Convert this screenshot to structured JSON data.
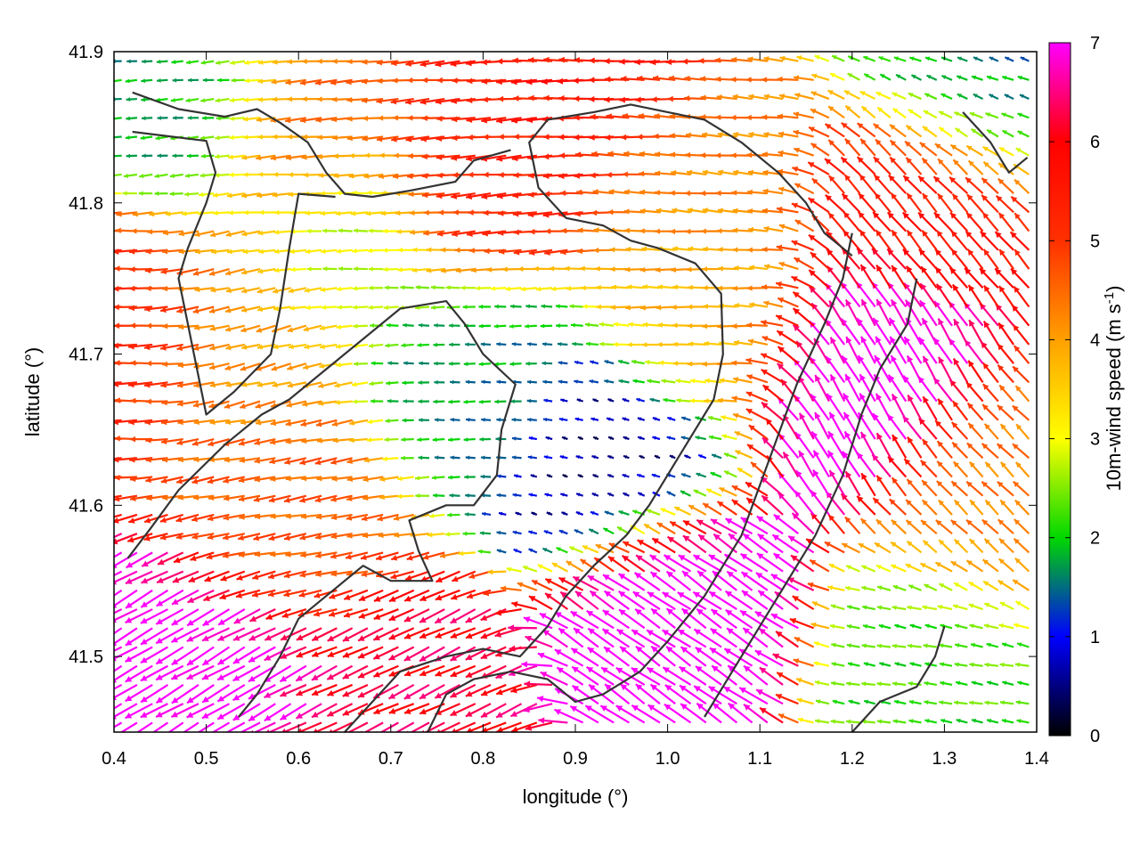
{
  "chart_data": {
    "type": "vector-field",
    "xlabel": "longitude (°)",
    "ylabel": "latitude (°)",
    "xlim": [
      0.4,
      1.4
    ],
    "ylim": [
      41.45,
      41.9
    ],
    "xticks": [
      {
        "v": 0.4,
        "label": "0.4"
      },
      {
        "v": 0.5,
        "label": "0.5"
      },
      {
        "v": 0.6,
        "label": "0.6"
      },
      {
        "v": 0.7,
        "label": "0.7"
      },
      {
        "v": 0.8,
        "label": "0.8"
      },
      {
        "v": 0.9,
        "label": "0.9"
      },
      {
        "v": 1.0,
        "label": "1.0"
      },
      {
        "v": 1.1,
        "label": "1.1"
      },
      {
        "v": 1.2,
        "label": "1.2"
      },
      {
        "v": 1.3,
        "label": "1.3"
      },
      {
        "v": 1.4,
        "label": "1.4"
      }
    ],
    "yticks": [
      {
        "v": 41.5,
        "label": "41.5"
      },
      {
        "v": 41.6,
        "label": "41.6"
      },
      {
        "v": 41.7,
        "label": "41.7"
      },
      {
        "v": 41.8,
        "label": "41.8"
      },
      {
        "v": 41.9,
        "label": "41.9"
      }
    ],
    "grid": false,
    "colorbar": {
      "label": "10m-wind speed (m s",
      "label_superscript": "-1",
      "label_suffix": ")",
      "range": [
        0,
        7
      ],
      "ticks": [
        {
          "v": 0,
          "label": "0"
        },
        {
          "v": 1,
          "label": "1"
        },
        {
          "v": 2,
          "label": "2"
        },
        {
          "v": 3,
          "label": "3"
        },
        {
          "v": 4,
          "label": "4"
        },
        {
          "v": 5,
          "label": "5"
        },
        {
          "v": 6,
          "label": "6"
        },
        {
          "v": 7,
          "label": "7"
        }
      ],
      "colors": [
        "#000000",
        "#0000ff",
        "#00d800",
        "#ffff00",
        "#ffa000",
        "#ff3000",
        "#ff0000",
        "#ff00ff"
      ]
    },
    "field_regions": [
      {
        "name": "north-west-gap",
        "lon": 0.49,
        "lat": 41.87,
        "speed": 1.8,
        "dir_deg": 185
      },
      {
        "name": "north-band",
        "lon": 0.62,
        "lat": 41.85,
        "speed": 4.6,
        "dir_deg": 185
      },
      {
        "name": "west-coast",
        "lon": 0.42,
        "lat": 41.72,
        "speed": 5.2,
        "dir_deg": 180
      },
      {
        "name": "western-valley",
        "lon": 0.55,
        "lat": 41.72,
        "speed": 4.0,
        "dir_deg": 195
      },
      {
        "name": "central-plateau",
        "lon": 0.66,
        "lat": 41.78,
        "speed": 2.6,
        "dir_deg": 180
      },
      {
        "name": "central-north",
        "lon": 0.8,
        "lat": 41.82,
        "speed": 5.3,
        "dir_deg": 185
      },
      {
        "name": "north-east-ridge",
        "lon": 1.05,
        "lat": 41.83,
        "speed": 4.2,
        "dir_deg": 175
      },
      {
        "name": "east-ridge",
        "lon": 1.05,
        "lat": 41.72,
        "speed": 3.8,
        "dir_deg": 180
      },
      {
        "name": "calm-basin",
        "lon": 0.95,
        "lat": 41.63,
        "speed": 0.4,
        "dir_deg": 160
      },
      {
        "name": "basin-edge",
        "lon": 0.8,
        "lat": 41.68,
        "speed": 1.7,
        "dir_deg": 180
      },
      {
        "name": "south-west-band",
        "lon": 0.6,
        "lat": 41.6,
        "speed": 4.6,
        "dir_deg": 190
      },
      {
        "name": "south-west-corner",
        "lon": 0.5,
        "lat": 41.49,
        "speed": 7.2,
        "dir_deg": 210
      },
      {
        "name": "south-central",
        "lon": 0.72,
        "lat": 41.47,
        "speed": 6.2,
        "dir_deg": 205
      },
      {
        "name": "south-east-valley",
        "lon": 1.02,
        "lat": 41.53,
        "speed": 7.4,
        "dir_deg": 145
      },
      {
        "name": "east-plain",
        "lon": 1.22,
        "lat": 41.68,
        "speed": 7.2,
        "dir_deg": 120
      },
      {
        "name": "east-upper",
        "lon": 1.28,
        "lat": 41.8,
        "speed": 5.6,
        "dir_deg": 130
      },
      {
        "name": "far-east",
        "lon": 1.36,
        "lat": 41.6,
        "speed": 4.3,
        "dir_deg": 135
      },
      {
        "name": "south-east-corner",
        "lon": 1.3,
        "lat": 41.49,
        "speed": 2.2,
        "dir_deg": 170
      },
      {
        "name": "north-east-corner",
        "lon": 1.33,
        "lat": 41.88,
        "speed": 1.6,
        "dir_deg": 160
      },
      {
        "name": "northern-strip",
        "lon": 0.95,
        "lat": 41.89,
        "speed": 5.6,
        "dir_deg": 180
      }
    ],
    "contours": [
      [
        [
          0.42,
          41.873
        ],
        [
          0.47,
          41.862
        ],
        [
          0.52,
          41.857
        ],
        [
          0.555,
          41.862
        ],
        [
          0.58,
          41.853
        ],
        [
          0.61,
          41.84
        ],
        [
          0.63,
          41.82
        ],
        [
          0.65,
          41.806
        ],
        [
          0.68,
          41.804
        ],
        [
          0.72,
          41.808
        ],
        [
          0.77,
          41.814
        ],
        [
          0.79,
          41.828
        ],
        [
          0.83,
          41.835
        ]
      ],
      [
        [
          0.42,
          41.847
        ],
        [
          0.5,
          41.841
        ],
        [
          0.51,
          41.82
        ],
        [
          0.5,
          41.8
        ],
        [
          0.48,
          41.77
        ],
        [
          0.47,
          41.75
        ],
        [
          0.48,
          41.72
        ],
        [
          0.49,
          41.69
        ],
        [
          0.5,
          41.66
        ],
        [
          0.53,
          41.675
        ],
        [
          0.57,
          41.7
        ],
        [
          0.58,
          41.73
        ],
        [
          0.59,
          41.77
        ],
        [
          0.6,
          41.806
        ],
        [
          0.64,
          41.804
        ]
      ],
      [
        [
          0.415,
          41.565
        ],
        [
          0.44,
          41.585
        ],
        [
          0.47,
          41.61
        ],
        [
          0.52,
          41.64
        ],
        [
          0.56,
          41.66
        ],
        [
          0.59,
          41.67
        ],
        [
          0.63,
          41.69
        ],
        [
          0.67,
          41.71
        ],
        [
          0.71,
          41.73
        ],
        [
          0.76,
          41.735
        ],
        [
          0.78,
          41.72
        ],
        [
          0.8,
          41.7
        ],
        [
          0.835,
          41.68
        ],
        [
          0.82,
          41.65
        ],
        [
          0.815,
          41.62
        ],
        [
          0.79,
          41.6
        ],
        [
          0.76,
          41.6
        ],
        [
          0.72,
          41.59
        ],
        [
          0.73,
          41.57
        ],
        [
          0.745,
          41.55
        ],
        [
          0.7,
          41.55
        ],
        [
          0.67,
          41.56
        ],
        [
          0.64,
          41.545
        ],
        [
          0.6,
          41.525
        ],
        [
          0.58,
          41.5
        ],
        [
          0.555,
          41.475
        ],
        [
          0.535,
          41.46
        ]
      ],
      [
        [
          0.65,
          41.45
        ],
        [
          0.68,
          41.47
        ],
        [
          0.71,
          41.49
        ],
        [
          0.76,
          41.5
        ],
        [
          0.8,
          41.505
        ],
        [
          0.84,
          41.5
        ],
        [
          0.87,
          41.52
        ],
        [
          0.89,
          41.54
        ],
        [
          0.92,
          41.56
        ],
        [
          0.955,
          41.58
        ],
        [
          0.98,
          41.6
        ],
        [
          1.0,
          41.62
        ],
        [
          1.02,
          41.64
        ],
        [
          1.05,
          41.67
        ],
        [
          1.06,
          41.7
        ],
        [
          1.058,
          41.74
        ],
        [
          1.03,
          41.76
        ],
        [
          0.99,
          41.77
        ],
        [
          0.96,
          41.775
        ],
        [
          0.93,
          41.785
        ],
        [
          0.89,
          41.79
        ],
        [
          0.86,
          41.81
        ],
        [
          0.85,
          41.84
        ],
        [
          0.87,
          41.855
        ],
        [
          0.92,
          41.86
        ],
        [
          0.96,
          41.865
        ],
        [
          1.0,
          41.86
        ],
        [
          1.04,
          41.855
        ],
        [
          1.08,
          41.84
        ],
        [
          1.12,
          41.82
        ],
        [
          1.15,
          41.8
        ],
        [
          1.17,
          41.78
        ],
        [
          1.2,
          41.765
        ]
      ],
      [
        [
          0.74,
          41.45
        ],
        [
          0.76,
          41.475
        ],
        [
          0.79,
          41.485
        ],
        [
          0.83,
          41.49
        ],
        [
          0.87,
          41.485
        ],
        [
          0.9,
          41.47
        ],
        [
          0.93,
          41.475
        ],
        [
          0.97,
          41.49
        ],
        [
          1.0,
          41.51
        ],
        [
          1.04,
          41.54
        ],
        [
          1.08,
          41.58
        ],
        [
          1.11,
          41.63
        ],
        [
          1.14,
          41.68
        ],
        [
          1.17,
          41.72
        ],
        [
          1.19,
          41.75
        ],
        [
          1.2,
          41.78
        ]
      ],
      [
        [
          1.04,
          41.46
        ],
        [
          1.07,
          41.49
        ],
        [
          1.1,
          41.52
        ],
        [
          1.13,
          41.55
        ],
        [
          1.16,
          41.58
        ],
        [
          1.19,
          41.62
        ],
        [
          1.21,
          41.66
        ],
        [
          1.23,
          41.69
        ],
        [
          1.26,
          41.72
        ],
        [
          1.27,
          41.75
        ]
      ],
      [
        [
          1.2,
          41.45
        ],
        [
          1.23,
          41.47
        ],
        [
          1.27,
          41.48
        ],
        [
          1.29,
          41.5
        ],
        [
          1.3,
          41.52
        ]
      ],
      [
        [
          1.32,
          41.86
        ],
        [
          1.35,
          41.84
        ],
        [
          1.37,
          41.82
        ],
        [
          1.39,
          41.83
        ]
      ]
    ]
  }
}
